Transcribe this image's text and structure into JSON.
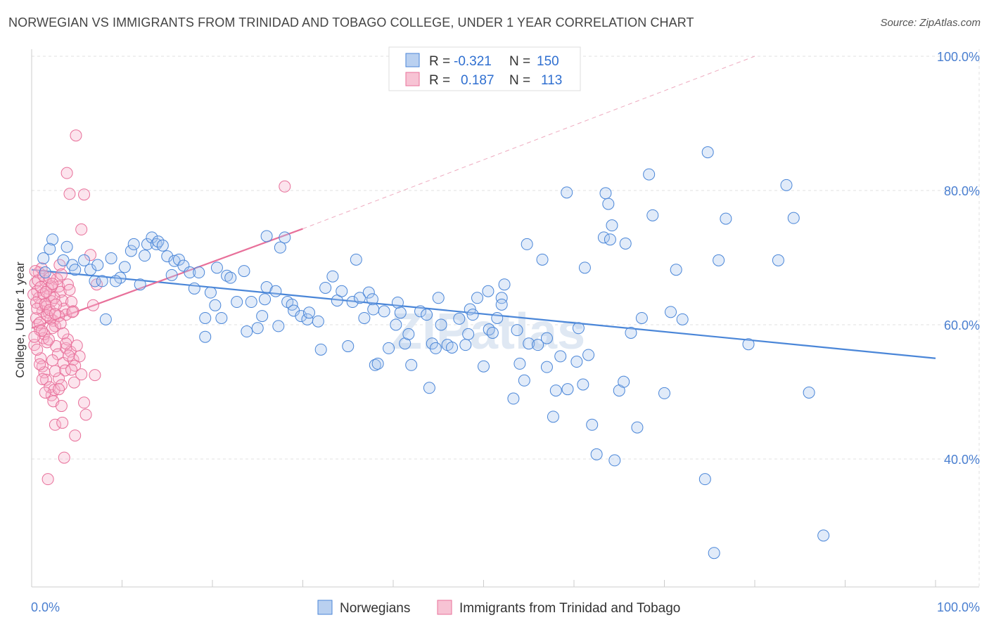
{
  "title": "NORWEGIAN VS IMMIGRANTS FROM TRINIDAD AND TOBAGO COLLEGE, UNDER 1 YEAR CORRELATION CHART",
  "source": "Source: ZipAtlas.com",
  "watermark": "ZIPatlas",
  "colors": {
    "blue": "#4a86d8",
    "blue_fill": "#b9d0f0",
    "pink": "#e8709a",
    "pink_fill": "#f7c3d4",
    "tick": "#4a7fd0"
  },
  "legend_top": {
    "rows": [
      {
        "r_label": "R = ",
        "r_value": "-0.321",
        "n_label": "N = ",
        "n_value": "150"
      },
      {
        "r_label": "R = ",
        "r_value": "0.187",
        "n_label": "N = ",
        "n_value": "113"
      }
    ]
  },
  "legend_bottom": [
    "Norwegians",
    "Immigrants from Trinidad and Tobago"
  ],
  "chart_data": {
    "type": "scatter",
    "title": "NORWEGIAN VS IMMIGRANTS FROM TRINIDAD AND TOBAGO COLLEGE, UNDER 1 YEAR CORRELATION CHART",
    "xlabel": "",
    "ylabel": "College, Under 1 year",
    "xlim": [
      0,
      100
    ],
    "ylim": [
      20,
      104
    ],
    "x_tick_labels": [
      "0.0%",
      "100.0%"
    ],
    "y_ticks": [
      40,
      60,
      80,
      100
    ],
    "y_tick_labels": [
      "40.0%",
      "60.0%",
      "80.0%",
      "100.0%"
    ],
    "grid": true,
    "legend": "top-center",
    "series": [
      {
        "name": "Norwegians",
        "color": "#4a86d8",
        "trend": {
          "x": [
            0,
            100
          ],
          "y": [
            68.2,
            55.0
          ],
          "style": "solid"
        },
        "points": [
          [
            1.5,
            67.8
          ],
          [
            1.3,
            69.9
          ],
          [
            2.3,
            72.7
          ],
          [
            2.0,
            71.3
          ],
          [
            3.5,
            69.6
          ],
          [
            3.9,
            71.6
          ],
          [
            4.5,
            68.9
          ],
          [
            4.8,
            68.2
          ],
          [
            5.8,
            69.6
          ],
          [
            6.5,
            68.2
          ],
          [
            7.3,
            68.9
          ],
          [
            7.0,
            66.5
          ],
          [
            7.8,
            66.5
          ],
          [
            8.8,
            69.9
          ],
          [
            9.8,
            67.0
          ],
          [
            9.3,
            66.5
          ],
          [
            11.0,
            71.0
          ],
          [
            11.3,
            72.0
          ],
          [
            12.5,
            70.3
          ],
          [
            12.8,
            72.0
          ],
          [
            13.3,
            73.0
          ],
          [
            13.8,
            72.0
          ],
          [
            14.0,
            72.4
          ],
          [
            14.5,
            71.8
          ],
          [
            15.0,
            70.2
          ],
          [
            15.8,
            69.5
          ],
          [
            16.3,
            69.7
          ],
          [
            16.8,
            68.8
          ],
          [
            17.5,
            67.8
          ],
          [
            18.0,
            65.4
          ],
          [
            18.5,
            67.8
          ],
          [
            19.2,
            58.2
          ],
          [
            19.8,
            64.8
          ],
          [
            20.3,
            62.9
          ],
          [
            21.0,
            61.0
          ],
          [
            21.6,
            67.3
          ],
          [
            22.0,
            67.0
          ],
          [
            22.7,
            63.4
          ],
          [
            23.5,
            68.0
          ],
          [
            23.8,
            59.0
          ],
          [
            24.3,
            63.4
          ],
          [
            25.0,
            59.5
          ],
          [
            25.5,
            61.3
          ],
          [
            25.8,
            63.8
          ],
          [
            26.0,
            65.6
          ],
          [
            27.0,
            65.0
          ],
          [
            27.3,
            59.8
          ],
          [
            28.3,
            63.4
          ],
          [
            28.8,
            63.0
          ],
          [
            28.0,
            73.0
          ],
          [
            26.0,
            73.2
          ],
          [
            27.5,
            71.5
          ],
          [
            29.0,
            62.1
          ],
          [
            29.8,
            61.3
          ],
          [
            30.5,
            60.8
          ],
          [
            30.7,
            61.8
          ],
          [
            31.7,
            60.5
          ],
          [
            32.0,
            56.3
          ],
          [
            32.5,
            65.5
          ],
          [
            33.3,
            67.2
          ],
          [
            33.8,
            63.6
          ],
          [
            34.3,
            65.0
          ],
          [
            35.0,
            56.8
          ],
          [
            35.5,
            63.4
          ],
          [
            36.3,
            64.0
          ],
          [
            36.8,
            61.0
          ],
          [
            37.3,
            64.8
          ],
          [
            37.7,
            63.8
          ],
          [
            37.8,
            62.3
          ],
          [
            38.0,
            54.0
          ],
          [
            38.3,
            54.2
          ],
          [
            39.0,
            62.0
          ],
          [
            40.3,
            60.0
          ],
          [
            40.5,
            63.3
          ],
          [
            40.8,
            61.8
          ],
          [
            41.3,
            57.2
          ],
          [
            41.7,
            58.6
          ],
          [
            42.0,
            54.0
          ],
          [
            43.0,
            62.0
          ],
          [
            43.7,
            61.5
          ],
          [
            44.3,
            57.2
          ],
          [
            44.7,
            56.5
          ],
          [
            45.3,
            60.0
          ],
          [
            46.0,
            57.0
          ],
          [
            46.5,
            56.6
          ],
          [
            47.3,
            60.9
          ],
          [
            48.0,
            57.0
          ],
          [
            48.5,
            62.3
          ],
          [
            48.8,
            61.5
          ],
          [
            49.3,
            64.0
          ],
          [
            50.0,
            53.8
          ],
          [
            50.6,
            59.3
          ],
          [
            51.0,
            58.8
          ],
          [
            51.5,
            61.0
          ],
          [
            52.0,
            64.0
          ],
          [
            52.3,
            66.0
          ],
          [
            53.3,
            49.0
          ],
          [
            53.7,
            59.2
          ],
          [
            54.0,
            54.2
          ],
          [
            54.5,
            51.7
          ],
          [
            55.0,
            57.2
          ],
          [
            56.0,
            57.0
          ],
          [
            56.5,
            69.7
          ],
          [
            57.0,
            53.7
          ],
          [
            57.7,
            46.3
          ],
          [
            58.5,
            55.3
          ],
          [
            59.3,
            50.4
          ],
          [
            60.3,
            54.5
          ],
          [
            61.0,
            51.1
          ],
          [
            61.6,
            55.5
          ],
          [
            62.0,
            45.1
          ],
          [
            62.5,
            40.7
          ],
          [
            63.3,
            73.0
          ],
          [
            64.0,
            72.7
          ],
          [
            64.5,
            39.8
          ],
          [
            65.0,
            50.2
          ],
          [
            65.5,
            51.5
          ],
          [
            66.3,
            58.8
          ],
          [
            67.0,
            44.7
          ],
          [
            67.5,
            61.0
          ],
          [
            68.3,
            82.4
          ],
          [
            68.7,
            76.3
          ],
          [
            70.0,
            49.8
          ],
          [
            70.7,
            61.9
          ],
          [
            71.3,
            68.2
          ],
          [
            74.5,
            37.0
          ],
          [
            74.8,
            85.7
          ],
          [
            75.5,
            26.0
          ],
          [
            76.0,
            69.6
          ],
          [
            76.8,
            75.8
          ],
          [
            79.3,
            57.1
          ],
          [
            82.6,
            69.6
          ],
          [
            83.5,
            80.8
          ],
          [
            84.3,
            75.9
          ],
          [
            86.0,
            49.9
          ],
          [
            87.6,
            28.6
          ],
          [
            50.5,
            65.0
          ],
          [
            45.0,
            64.0
          ],
          [
            39.5,
            56.5
          ],
          [
            20.5,
            68.5
          ],
          [
            63.5,
            79.6
          ],
          [
            60.5,
            59.5
          ],
          [
            48.3,
            58.6
          ],
          [
            52.0,
            63.0
          ],
          [
            57.0,
            58.0
          ],
          [
            58.0,
            50.2
          ],
          [
            59.2,
            79.7
          ],
          [
            64.2,
            74.8
          ],
          [
            63.8,
            78.0
          ],
          [
            72.0,
            60.8
          ],
          [
            15.5,
            67.4
          ],
          [
            10.3,
            68.6
          ],
          [
            35.9,
            69.7
          ],
          [
            54.8,
            72.0
          ],
          [
            65.7,
            72.1
          ],
          [
            8.2,
            60.8
          ],
          [
            12.0,
            66.0
          ],
          [
            19.2,
            61.0
          ],
          [
            44.0,
            50.6
          ],
          [
            61.2,
            68.5
          ]
        ]
      },
      {
        "name": "Immigrants from Trinidad and Tobago",
        "color": "#e8709a",
        "trend": {
          "x": [
            0,
            30
          ],
          "y": [
            59.5,
            74.3
          ],
          "style": "solid"
        },
        "trend_ext": {
          "x": [
            30,
            80
          ],
          "y": [
            74.3,
            100
          ],
          "style": "dashed"
        },
        "points": [
          [
            0.4,
            66.2
          ],
          [
            0.6,
            65.0
          ],
          [
            0.8,
            64.0
          ],
          [
            1.0,
            63.0
          ],
          [
            1.2,
            62.0
          ],
          [
            0.5,
            61.0
          ],
          [
            0.7,
            60.0
          ],
          [
            0.9,
            59.2
          ],
          [
            1.3,
            58.0
          ],
          [
            0.3,
            57.0
          ],
          [
            1.5,
            66.5
          ],
          [
            1.8,
            65.4
          ],
          [
            2.0,
            64.4
          ],
          [
            2.2,
            63.5
          ],
          [
            1.6,
            62.7
          ],
          [
            1.9,
            61.8
          ],
          [
            2.4,
            60.6
          ],
          [
            2.6,
            59.8
          ],
          [
            0.8,
            67.8
          ],
          [
            1.1,
            68.4
          ],
          [
            2.8,
            66.8
          ],
          [
            3.0,
            65.7
          ],
          [
            3.2,
            64.9
          ],
          [
            3.4,
            63.6
          ],
          [
            3.6,
            62.4
          ],
          [
            3.8,
            61.5
          ],
          [
            2.1,
            60.9
          ],
          [
            2.3,
            59.5
          ],
          [
            1.4,
            58.6
          ],
          [
            1.7,
            57.4
          ],
          [
            4.0,
            66.0
          ],
          [
            4.2,
            65.2
          ],
          [
            4.4,
            63.4
          ],
          [
            4.6,
            62.0
          ],
          [
            3.1,
            68.9
          ],
          [
            3.3,
            67.5
          ],
          [
            2.7,
            56.8
          ],
          [
            2.9,
            55.6
          ],
          [
            3.5,
            54.3
          ],
          [
            3.7,
            53.2
          ],
          [
            1.0,
            55.0
          ],
          [
            1.2,
            53.8
          ],
          [
            1.4,
            52.9
          ],
          [
            1.6,
            51.8
          ],
          [
            2.0,
            50.7
          ],
          [
            2.2,
            49.5
          ],
          [
            2.4,
            48.6
          ],
          [
            2.5,
            50.3
          ],
          [
            3.0,
            52.0
          ],
          [
            3.3,
            51.0
          ],
          [
            3.8,
            56.5
          ],
          [
            4.0,
            57.8
          ],
          [
            4.3,
            56.0
          ],
          [
            4.6,
            54.8
          ],
          [
            4.8,
            53.9
          ],
          [
            5.0,
            56.9
          ],
          [
            5.3,
            55.3
          ],
          [
            5.5,
            52.6
          ],
          [
            5.8,
            48.4
          ],
          [
            6.0,
            46.6
          ],
          [
            2.6,
            45.1
          ],
          [
            3.4,
            45.4
          ],
          [
            3.6,
            40.2
          ],
          [
            1.8,
            37.0
          ],
          [
            4.8,
            43.5
          ],
          [
            7.0,
            52.5
          ],
          [
            6.8,
            62.9
          ],
          [
            7.2,
            66.0
          ],
          [
            6.5,
            70.4
          ],
          [
            5.5,
            74.2
          ],
          [
            4.2,
            79.5
          ],
          [
            5.8,
            79.4
          ],
          [
            3.9,
            82.6
          ],
          [
            4.9,
            88.2
          ],
          [
            28.0,
            80.6
          ],
          [
            0.2,
            64.5
          ],
          [
            0.5,
            63.3
          ],
          [
            0.6,
            62.4
          ],
          [
            0.9,
            60.3
          ],
          [
            1.1,
            59.1
          ],
          [
            1.3,
            64.6
          ],
          [
            1.5,
            63.1
          ],
          [
            1.7,
            61.4
          ],
          [
            2.0,
            62.2
          ],
          [
            2.2,
            65.7
          ],
          [
            2.5,
            64.0
          ],
          [
            2.7,
            63.0
          ],
          [
            3.0,
            61.3
          ],
          [
            3.2,
            60.2
          ],
          [
            0.4,
            68.0
          ],
          [
            0.7,
            66.6
          ],
          [
            1.0,
            65.6
          ],
          [
            1.3,
            67.3
          ],
          [
            1.6,
            64.9
          ],
          [
            2.0,
            67.0
          ],
          [
            2.3,
            66.1
          ],
          [
            2.6,
            61.6
          ],
          [
            3.5,
            58.7
          ],
          [
            3.8,
            57.2
          ],
          [
            4.1,
            55.4
          ],
          [
            4.4,
            53.3
          ],
          [
            4.7,
            51.4
          ],
          [
            0.3,
            58.2
          ],
          [
            0.6,
            56.3
          ],
          [
            0.9,
            54.1
          ],
          [
            1.2,
            51.9
          ],
          [
            1.5,
            49.9
          ],
          [
            1.9,
            57.8
          ],
          [
            2.3,
            54.7
          ],
          [
            2.6,
            53.1
          ],
          [
            3.0,
            50.4
          ],
          [
            3.3,
            47.9
          ],
          [
            4.5,
            61.9
          ]
        ]
      }
    ]
  }
}
